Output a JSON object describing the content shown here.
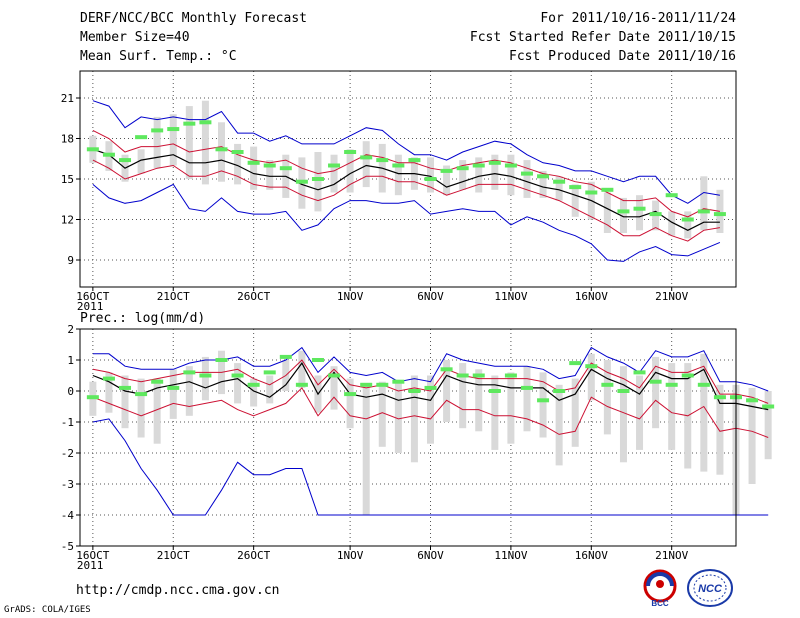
{
  "header": {
    "title": "DERF/NCC/BCC Monthly Forecast",
    "member_size": "Member Size=40",
    "variable": "Mean Surf. Temp.: °C",
    "period": "For 2011/10/16-2011/11/24",
    "fcst_started": "Fcst Started Refer Date 2011/10/15",
    "fcst_produced": "Fcst Produced Date 2011/10/16"
  },
  "footer": {
    "url": "http://cmdp.ncc.cma.gov.cn",
    "credit": "GrADS: COLA/IGES",
    "logo_left_text": "BCC",
    "logo_right_text": "NCC"
  },
  "colors": {
    "max": "#0000cc",
    "min": "#0000cc",
    "p_high": "#cc1133",
    "p_low": "#cc1133",
    "mean": "#000000",
    "box": "#d9d9d9",
    "marker": "#5ee85e",
    "grid": "#555555"
  },
  "chart_data": [
    {
      "type": "line",
      "title": "Mean Surf. Temp.: °C",
      "ylim": [
        7,
        23
      ],
      "yticks": [
        9,
        12,
        15,
        18,
        21
      ],
      "xlim": [
        -0.8,
        40
      ],
      "xtick_labels": [
        {
          "day": 0,
          "label": "16OCT",
          "sub": "2011"
        },
        {
          "day": 5,
          "label": "21OCT"
        },
        {
          "day": 10,
          "label": "26OCT"
        },
        {
          "day": 16,
          "label": "1NOV"
        },
        {
          "day": 21,
          "label": "6NOV"
        },
        {
          "day": 26,
          "label": "11NOV"
        },
        {
          "day": 31,
          "label": "16NOV"
        },
        {
          "day": 36,
          "label": "21NOV"
        }
      ],
      "series": {
        "max": [
          20.8,
          20.4,
          18.8,
          19.6,
          19.4,
          19.6,
          19.4,
          19.4,
          20.0,
          18.4,
          18.4,
          17.8,
          18.2,
          17.6,
          17.6,
          17.6,
          18.2,
          18.8,
          18.6,
          17.6,
          16.8,
          16.8,
          16.4,
          17.0,
          17.4,
          17.8,
          17.6,
          16.8,
          16.2,
          16.0,
          15.6,
          15.6,
          15.2,
          14.8,
          15.2,
          15.2,
          13.8,
          13.2,
          14.0,
          13.8
        ],
        "p_high": [
          18.6,
          18.0,
          17.0,
          17.4,
          17.4,
          17.6,
          17.0,
          17.2,
          17.4,
          16.8,
          16.4,
          16.2,
          16.4,
          15.8,
          15.4,
          15.6,
          16.2,
          16.8,
          16.6,
          16.2,
          16.2,
          15.8,
          15.6,
          16.0,
          16.2,
          16.4,
          16.2,
          15.8,
          15.4,
          15.2,
          14.8,
          14.6,
          14.0,
          13.4,
          13.4,
          13.6,
          12.6,
          12.2,
          12.8,
          12.6
        ],
        "mean": [
          17.2,
          16.8,
          15.8,
          16.4,
          16.6,
          16.8,
          16.2,
          16.2,
          16.4,
          16.0,
          15.4,
          15.2,
          15.2,
          14.6,
          14.2,
          14.6,
          15.4,
          16.0,
          15.8,
          15.4,
          15.4,
          15.2,
          14.4,
          14.8,
          15.2,
          15.4,
          15.2,
          14.8,
          14.4,
          14.2,
          13.8,
          13.4,
          12.8,
          12.2,
          12.2,
          12.6,
          11.8,
          11.2,
          11.8,
          11.8
        ],
        "p_low": [
          16.4,
          15.8,
          15.0,
          15.4,
          15.8,
          16.0,
          15.2,
          15.2,
          15.6,
          15.2,
          14.6,
          14.4,
          14.4,
          13.8,
          13.4,
          13.8,
          14.6,
          15.2,
          15.2,
          14.8,
          14.8,
          14.4,
          13.8,
          14.2,
          14.6,
          14.6,
          14.6,
          14.2,
          13.8,
          13.4,
          12.8,
          12.2,
          11.6,
          10.8,
          10.8,
          11.4,
          10.8,
          10.4,
          11.2,
          11.4
        ],
        "min": [
          14.6,
          13.6,
          13.2,
          13.4,
          14.0,
          14.6,
          12.8,
          12.6,
          13.6,
          12.6,
          12.4,
          12.4,
          12.6,
          11.2,
          11.6,
          12.8,
          13.4,
          13.4,
          13.2,
          13.2,
          13.4,
          12.4,
          12.6,
          12.8,
          12.6,
          12.6,
          11.6,
          12.2,
          11.8,
          11.2,
          10.8,
          10.2,
          9.0,
          8.9,
          9.6,
          10.0,
          9.4,
          9.3,
          9.8,
          10.3
        ],
        "box_top": [
          18.2,
          17.8,
          16.8,
          17.2,
          19.6,
          19.8,
          20.4,
          20.8,
          19.2,
          17.6,
          17.4,
          16.4,
          16.8,
          16.6,
          17.0,
          16.8,
          17.2,
          17.8,
          17.6,
          16.8,
          16.6,
          16.6,
          16.0,
          16.4,
          16.6,
          16.8,
          16.8,
          16.4,
          15.6,
          15.2,
          14.6,
          14.8,
          14.0,
          13.6,
          13.8,
          13.4,
          12.6,
          12.6,
          15.2,
          14.2
        ],
        "box_bottom": [
          16.2,
          15.6,
          14.8,
          15.4,
          15.8,
          16.0,
          15.0,
          14.6,
          14.8,
          14.6,
          14.2,
          14.2,
          13.6,
          12.8,
          12.6,
          14.0,
          14.0,
          14.4,
          14.0,
          13.8,
          14.2,
          14.0,
          13.8,
          14.2,
          14.0,
          14.2,
          13.8,
          13.6,
          13.6,
          13.4,
          12.2,
          12.0,
          11.0,
          11.0,
          11.2,
          11.2,
          10.8,
          10.6,
          11.2,
          11.0
        ],
        "marker": [
          17.2,
          16.8,
          16.4,
          18.1,
          18.6,
          18.7,
          19.1,
          19.2,
          17.2,
          17.0,
          16.2,
          16.0,
          15.8,
          14.8,
          15.0,
          16.0,
          17.0,
          16.6,
          16.4,
          16.0,
          16.4,
          15.0,
          15.6,
          15.8,
          16.0,
          16.2,
          16.0,
          15.4,
          15.2,
          14.8,
          14.4,
          14.0,
          14.2,
          12.6,
          12.8,
          12.4,
          13.8,
          12.0,
          12.6,
          12.4
        ]
      }
    },
    {
      "type": "line",
      "title": "Prec.: log(mm/d)",
      "ylim": [
        -5,
        2
      ],
      "yticks": [
        -5,
        -4,
        -3,
        -2,
        -1,
        0,
        1,
        2
      ],
      "xlim": [
        -0.8,
        40
      ],
      "xtick_labels": [
        {
          "day": 0,
          "label": "16OCT",
          "sub": "2011"
        },
        {
          "day": 5,
          "label": "21OCT"
        },
        {
          "day": 10,
          "label": "26OCT"
        },
        {
          "day": 16,
          "label": "1NOV"
        },
        {
          "day": 21,
          "label": "6NOV"
        },
        {
          "day": 26,
          "label": "11NOV"
        },
        {
          "day": 31,
          "label": "16NOV"
        },
        {
          "day": 36,
          "label": "21NOV"
        }
      ],
      "series": {
        "max": [
          1.2,
          1.2,
          0.8,
          0.7,
          0.7,
          0.7,
          0.9,
          1.0,
          1.0,
          1.1,
          0.8,
          0.8,
          1.0,
          1.4,
          0.6,
          1.1,
          0.6,
          0.5,
          0.6,
          0.3,
          0.4,
          0.3,
          1.2,
          1.0,
          0.9,
          0.8,
          0.8,
          0.8,
          0.7,
          0.4,
          0.5,
          1.4,
          1.1,
          0.9,
          0.6,
          1.3,
          1.1,
          1.1,
          1.3,
          0.3,
          0.3,
          0.2,
          0.0
        ],
        "p_high": [
          0.7,
          0.6,
          0.4,
          0.3,
          0.4,
          0.5,
          0.6,
          0.6,
          0.6,
          0.7,
          0.4,
          0.2,
          0.5,
          1.0,
          0.2,
          0.7,
          0.2,
          0.1,
          0.2,
          0.0,
          0.1,
          0.0,
          0.7,
          0.5,
          0.4,
          0.4,
          0.4,
          0.4,
          0.3,
          0.0,
          0.1,
          0.9,
          0.6,
          0.4,
          0.1,
          0.8,
          0.6,
          0.6,
          0.8,
          -0.1,
          -0.1,
          -0.2,
          -0.4
        ],
        "mean": [
          0.5,
          0.3,
          0.0,
          -0.1,
          0.1,
          0.2,
          0.3,
          0.1,
          0.3,
          0.4,
          0.0,
          -0.2,
          0.2,
          0.9,
          -0.1,
          0.6,
          -0.1,
          -0.2,
          -0.1,
          -0.3,
          -0.2,
          -0.3,
          0.5,
          0.3,
          0.2,
          0.2,
          0.1,
          0.1,
          0.1,
          -0.3,
          -0.1,
          0.7,
          0.4,
          0.2,
          -0.1,
          0.6,
          0.4,
          0.4,
          0.7,
          -0.4,
          -0.4,
          -0.5,
          -0.6
        ],
        "p_low": [
          -0.2,
          -0.4,
          -0.6,
          -0.8,
          -0.6,
          -0.4,
          -0.5,
          -0.4,
          -0.3,
          -0.6,
          -0.8,
          -0.6,
          -0.4,
          0.1,
          -0.8,
          -0.2,
          -0.8,
          -0.9,
          -0.7,
          -0.9,
          -0.8,
          -0.9,
          -0.3,
          -0.6,
          -0.6,
          -0.8,
          -0.8,
          -0.9,
          -1.1,
          -1.4,
          -1.3,
          -0.2,
          -0.5,
          -0.7,
          -0.9,
          -0.3,
          -0.7,
          -0.8,
          -0.5,
          -1.3,
          -1.2,
          -1.3,
          -1.5
        ],
        "min": [
          -1.0,
          -0.9,
          -1.6,
          -2.5,
          -3.2,
          -4.0,
          -4.0,
          -4.0,
          -3.2,
          -2.3,
          -2.7,
          -2.7,
          -2.5,
          -2.5,
          -4.0,
          -4.0,
          -4.0,
          -4.0,
          -4.0,
          -4.0,
          -4.0,
          -4.0,
          -4.0,
          -4.0,
          -4.0,
          -4.0,
          -4.0,
          -4.0,
          -4.0,
          -4.0,
          -4.0,
          -4.0,
          -4.0,
          -4.0,
          -4.0,
          -4.0,
          -4.0,
          -4.0,
          -4.0,
          -4.0,
          -4.0,
          -4.0,
          -4.0
        ],
        "box_top": [
          0.3,
          0.6,
          0.5,
          0.4,
          0.4,
          0.7,
          0.8,
          1.1,
          1.3,
          0.9,
          0.4,
          0.5,
          1.0,
          1.3,
          0.5,
          0.8,
          0.4,
          0.2,
          0.3,
          0.3,
          0.5,
          0.5,
          1.0,
          0.9,
          0.7,
          0.5,
          0.6,
          0.8,
          0.6,
          0.2,
          0.4,
          1.2,
          1.0,
          0.8,
          0.5,
          1.1,
          0.9,
          0.9,
          1.2,
          0.2,
          0.2,
          0.1,
          0.0
        ],
        "box_bottom": [
          -0.8,
          -0.7,
          -1.2,
          -1.5,
          -1.7,
          -0.9,
          -0.8,
          -0.3,
          -0.1,
          -0.4,
          -0.5,
          -0.4,
          0.0,
          0.1,
          -0.7,
          -0.6,
          -1.2,
          -4.0,
          -1.8,
          -2.0,
          -2.3,
          -1.7,
          -1.0,
          -1.2,
          -1.3,
          -1.9,
          -1.7,
          -1.3,
          -1.5,
          -2.4,
          -1.8,
          -0.3,
          -1.4,
          -2.3,
          -1.9,
          -1.2,
          -1.9,
          -2.5,
          -2.6,
          -2.7,
          -4.0,
          -3.0,
          -2.2
        ],
        "marker": [
          -0.2,
          0.4,
          0.1,
          -0.1,
          0.3,
          0.1,
          0.6,
          0.5,
          1.0,
          0.5,
          0.2,
          0.6,
          1.1,
          0.2,
          1.0,
          0.5,
          -0.1,
          0.2,
          0.2,
          0.3,
          0.0,
          0.1,
          0.7,
          0.5,
          0.5,
          0.0,
          0.5,
          0.1,
          -0.3,
          0.0,
          0.9,
          0.8,
          0.2,
          0.0,
          0.6,
          0.3,
          0.2,
          0.5,
          0.2,
          -0.2,
          -0.2,
          -0.3,
          -0.5
        ]
      }
    }
  ]
}
